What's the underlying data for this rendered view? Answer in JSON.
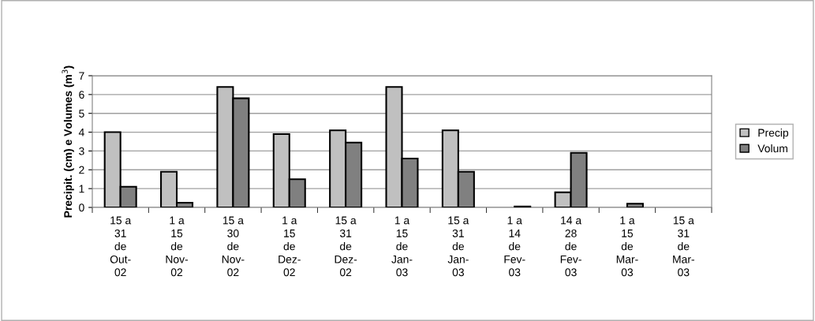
{
  "chart_data": {
    "type": "bar",
    "ylabel": "Precipit. (cm) e Volumes (m$^{3}$)",
    "categories": [
      "15 a\n31\nde\nOut-\n02",
      "1 a\n15\nde\nNov-\n02",
      "15 a\n30\nde\nNov-\n02",
      "1 a\n15\nde\nDez-\n02",
      "15 a\n31\nde\nDez-\n02",
      "1 a\n15\nde\nJan-\n03",
      "15 a\n31\nde\nJan-\n03",
      "1 a\n14\nde\nFev-\n03",
      "14 a\n28\nde\nFev-\n03",
      "1 a\n15\nde\nMar-\n03",
      "15 a\n31\nde\nMar-\n03"
    ],
    "series": [
      {
        "name": "Precip",
        "color": "#c0c0c0",
        "values": [
          4.0,
          1.9,
          6.4,
          3.9,
          4.1,
          6.4,
          4.1,
          0,
          0.8,
          0,
          0
        ]
      },
      {
        "name": "Volum",
        "color": "#808080",
        "values": [
          1.1,
          0.25,
          5.8,
          1.5,
          3.45,
          2.6,
          1.9,
          0.05,
          2.9,
          0.2,
          0
        ]
      }
    ],
    "ylim": [
      0,
      7
    ],
    "yticks": [
      0,
      1,
      2,
      3,
      4,
      5,
      6,
      7
    ],
    "grid": "y",
    "legend": "right"
  }
}
